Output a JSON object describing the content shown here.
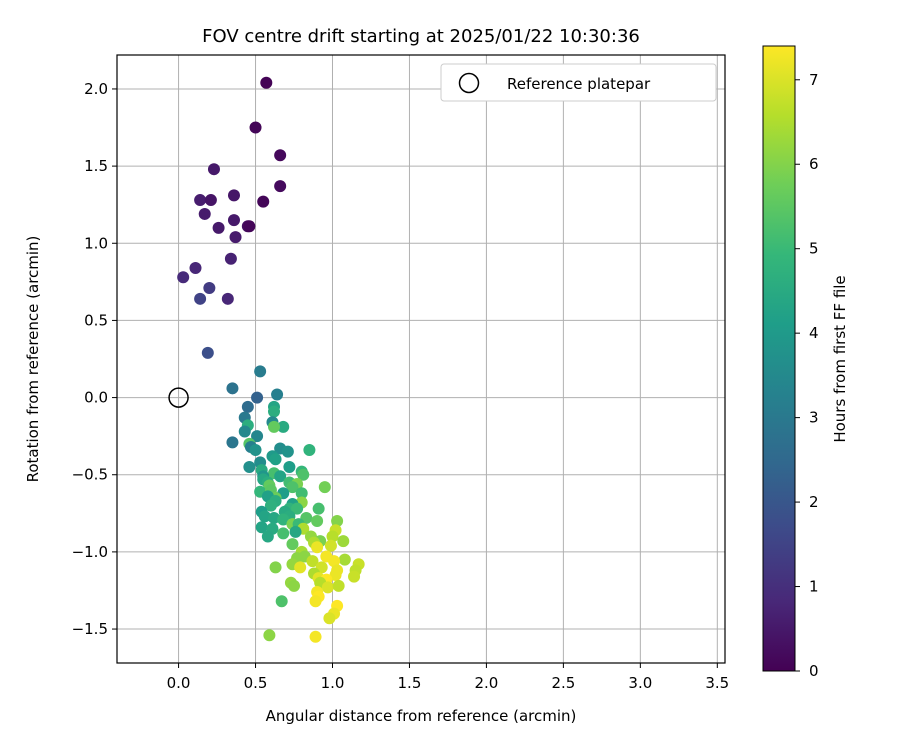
{
  "chart_data": {
    "type": "scatter",
    "title": "FOV centre drift starting at 2025/01/22 10:30:36",
    "xlabel": "Angular distance from reference (arcmin)",
    "ylabel": "Rotation from reference (arcmin)",
    "xlim": [
      -0.4,
      3.55
    ],
    "ylim": [
      -1.72,
      2.22
    ],
    "xticks": [
      0.0,
      0.5,
      1.0,
      1.5,
      2.0,
      2.5,
      3.0,
      3.5
    ],
    "yticks": [
      -1.5,
      -1.0,
      -0.5,
      0.0,
      0.5,
      1.0,
      1.5,
      2.0
    ],
    "grid": true,
    "legend": {
      "placement": "top-right",
      "entries": [
        "Reference platepar"
      ]
    },
    "colorbar": {
      "label": "Hours from first FF file",
      "colormap": "viridis",
      "range": [
        0,
        7.4
      ],
      "ticks": [
        0,
        1,
        2,
        3,
        4,
        5,
        6,
        7
      ]
    },
    "reference": {
      "x": 0.0,
      "y": 0.0
    },
    "points": [
      [
        0.57,
        2.04,
        0.05
      ],
      [
        0.5,
        1.75,
        0.1
      ],
      [
        0.66,
        1.57,
        0.15
      ],
      [
        0.23,
        1.48,
        0.5
      ],
      [
        0.66,
        1.37,
        0.2
      ],
      [
        0.14,
        1.28,
        0.6
      ],
      [
        0.21,
        1.28,
        0.4
      ],
      [
        0.36,
        1.31,
        0.45
      ],
      [
        0.55,
        1.27,
        0.1
      ],
      [
        0.17,
        1.19,
        0.55
      ],
      [
        0.36,
        1.15,
        0.5
      ],
      [
        0.26,
        1.1,
        0.5
      ],
      [
        0.45,
        1.11,
        0.3
      ],
      [
        0.37,
        1.04,
        0.55
      ],
      [
        0.46,
        1.11,
        0.1
      ],
      [
        0.34,
        0.9,
        0.7
      ],
      [
        0.11,
        0.84,
        0.8
      ],
      [
        0.03,
        0.78,
        0.9
      ],
      [
        0.2,
        0.71,
        1.3
      ],
      [
        0.14,
        0.64,
        1.5
      ],
      [
        0.32,
        0.64,
        0.8
      ],
      [
        0.19,
        0.29,
        1.8
      ],
      [
        0.53,
        0.17,
        3.1
      ],
      [
        0.35,
        0.06,
        2.8
      ],
      [
        0.64,
        0.02,
        3.2
      ],
      [
        0.51,
        0.0,
        2.3
      ],
      [
        0.62,
        -0.06,
        4.3
      ],
      [
        0.45,
        -0.06,
        2.6
      ],
      [
        0.62,
        -0.09,
        4.6
      ],
      [
        0.43,
        -0.13,
        3.0
      ],
      [
        0.61,
        -0.16,
        3.5
      ],
      [
        0.68,
        -0.19,
        4.5
      ],
      [
        0.45,
        -0.18,
        4.6
      ],
      [
        0.62,
        -0.19,
        5.6
      ],
      [
        0.43,
        -0.22,
        3.5
      ],
      [
        0.51,
        -0.25,
        3.4
      ],
      [
        0.35,
        -0.29,
        2.9
      ],
      [
        0.46,
        -0.3,
        5.4
      ],
      [
        0.47,
        -0.32,
        3.2
      ],
      [
        0.66,
        -0.33,
        3.6
      ],
      [
        0.71,
        -0.35,
        3.8
      ],
      [
        0.85,
        -0.34,
        4.8
      ],
      [
        0.5,
        -0.34,
        3.8
      ],
      [
        0.61,
        -0.38,
        4.0
      ],
      [
        0.63,
        -0.4,
        4.2
      ],
      [
        0.53,
        -0.42,
        3.6
      ],
      [
        0.46,
        -0.45,
        3.7
      ],
      [
        0.72,
        -0.45,
        4.1
      ],
      [
        0.54,
        -0.47,
        4.5
      ],
      [
        0.8,
        -0.48,
        4.9
      ],
      [
        0.62,
        -0.49,
        5.2
      ],
      [
        0.81,
        -0.5,
        5.3
      ],
      [
        0.55,
        -0.51,
        3.9
      ],
      [
        0.66,
        -0.51,
        4.3
      ],
      [
        0.55,
        -0.53,
        4.4
      ],
      [
        0.58,
        -0.55,
        4.6
      ],
      [
        0.72,
        -0.55,
        5.1
      ],
      [
        0.77,
        -0.56,
        5.9
      ],
      [
        0.59,
        -0.57,
        5.6
      ],
      [
        0.95,
        -0.58,
        5.8
      ],
      [
        0.74,
        -0.58,
        5.3
      ],
      [
        0.53,
        -0.61,
        4.9
      ],
      [
        0.6,
        -0.6,
        5.5
      ],
      [
        0.68,
        -0.62,
        4.1
      ],
      [
        0.8,
        -0.62,
        5.1
      ],
      [
        0.63,
        -0.65,
        5.7
      ],
      [
        0.58,
        -0.64,
        4.2
      ],
      [
        0.63,
        -0.67,
        4.6
      ],
      [
        0.8,
        -0.68,
        6.1
      ],
      [
        0.74,
        -0.69,
        4.2
      ],
      [
        0.72,
        -0.72,
        4.8
      ],
      [
        0.6,
        -0.7,
        4.7
      ],
      [
        0.77,
        -0.72,
        5.0
      ],
      [
        0.91,
        -0.72,
        5.2
      ],
      [
        0.54,
        -0.74,
        4.1
      ],
      [
        0.69,
        -0.74,
        4.5
      ],
      [
        0.56,
        -0.77,
        4.3
      ],
      [
        0.72,
        -0.77,
        4.6
      ],
      [
        0.83,
        -0.78,
        5.4
      ],
      [
        0.62,
        -0.78,
        4.4
      ],
      [
        0.68,
        -0.79,
        4.8
      ],
      [
        0.9,
        -0.8,
        5.6
      ],
      [
        1.03,
        -0.8,
        6.0
      ],
      [
        0.74,
        -0.82,
        5.9
      ],
      [
        0.78,
        -0.82,
        5.0
      ],
      [
        0.54,
        -0.84,
        4.3
      ],
      [
        0.61,
        -0.85,
        4.5
      ],
      [
        0.81,
        -0.85,
        6.5
      ],
      [
        1.02,
        -0.86,
        6.8
      ],
      [
        0.68,
        -0.88,
        5.2
      ],
      [
        0.76,
        -0.87,
        4.4
      ],
      [
        0.58,
        -0.9,
        4.4
      ],
      [
        0.86,
        -0.9,
        6.2
      ],
      [
        1.0,
        -0.9,
        6.6
      ],
      [
        0.92,
        -0.93,
        5.9
      ],
      [
        1.07,
        -0.93,
        6.3
      ],
      [
        0.74,
        -0.95,
        5.6
      ],
      [
        0.88,
        -0.94,
        6.5
      ],
      [
        0.99,
        -0.96,
        6.9
      ],
      [
        0.9,
        -0.97,
        7.2
      ],
      [
        0.8,
        -1.0,
        6.4
      ],
      [
        0.82,
        -1.03,
        6.1
      ],
      [
        0.96,
        -1.03,
        7.3
      ],
      [
        0.77,
        -1.04,
        6.1
      ],
      [
        1.08,
        -1.05,
        6.4
      ],
      [
        0.87,
        -1.06,
        6.7
      ],
      [
        1.01,
        -1.06,
        7.3
      ],
      [
        0.74,
        -1.08,
        6.2
      ],
      [
        1.17,
        -1.08,
        6.8
      ],
      [
        0.79,
        -1.1,
        7.1
      ],
      [
        0.63,
        -1.1,
        6.0
      ],
      [
        0.93,
        -1.1,
        6.9
      ],
      [
        1.03,
        -1.12,
        7.2
      ],
      [
        1.15,
        -1.12,
        6.7
      ],
      [
        0.88,
        -1.14,
        6.5
      ],
      [
        1.02,
        -1.15,
        7.2
      ],
      [
        0.91,
        -1.17,
        7.1
      ],
      [
        0.96,
        -1.18,
        7.4
      ],
      [
        1.14,
        -1.16,
        6.8
      ],
      [
        0.92,
        -1.2,
        6.6
      ],
      [
        0.73,
        -1.2,
        6.2
      ],
      [
        0.75,
        -1.22,
        6.1
      ],
      [
        0.97,
        -1.23,
        7.0
      ],
      [
        1.04,
        -1.22,
        6.7
      ],
      [
        0.9,
        -1.26,
        7.3
      ],
      [
        0.91,
        -1.29,
        7.4
      ],
      [
        0.67,
        -1.32,
        5.3
      ],
      [
        0.89,
        -1.32,
        7.3
      ],
      [
        1.03,
        -1.35,
        7.4
      ],
      [
        1.01,
        -1.4,
        7.2
      ],
      [
        0.98,
        -1.43,
        7.0
      ],
      [
        0.59,
        -1.54,
        6.1
      ],
      [
        0.89,
        -1.55,
        7.3
      ]
    ]
  }
}
